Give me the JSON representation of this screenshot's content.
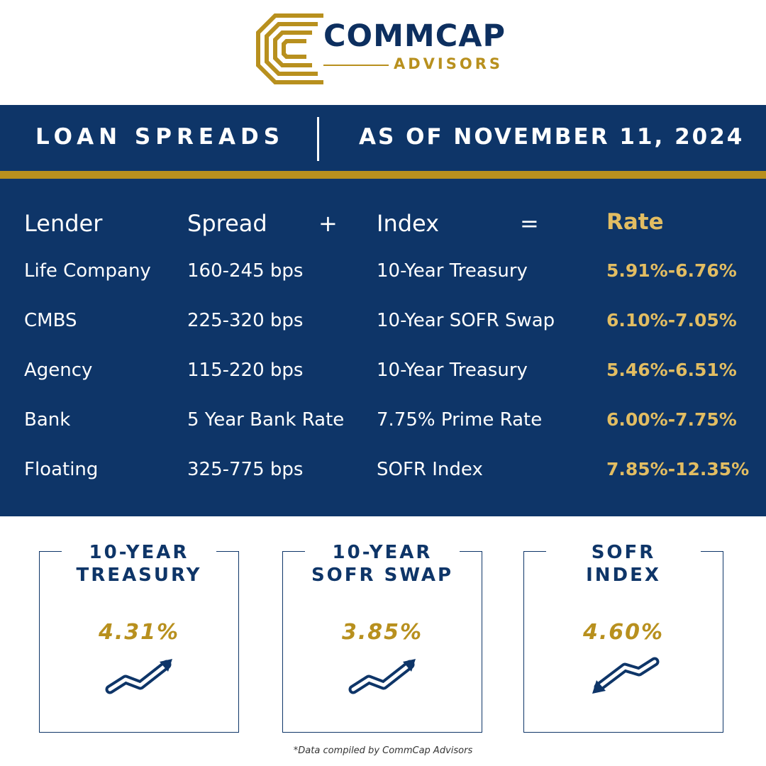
{
  "brand": {
    "name": "COMMCAP",
    "subtitle": "ADVISORS",
    "colors": {
      "navy": "#0e3568",
      "gold": "#b8901e",
      "rate_gold": "#e2bd62"
    }
  },
  "banner": {
    "left_text": "LOAN SPREADS",
    "right_text": "AS OF NOVEMBER 11, 2024"
  },
  "table": {
    "headers": {
      "lender": "Lender",
      "spread": "Spread",
      "plus": "+",
      "index": "Index",
      "equals": "=",
      "rate": "Rate"
    },
    "rows": [
      {
        "lender": "Life Company",
        "spread": "160-245 bps",
        "index": "10-Year Treasury",
        "rate": "5.91%-6.76%"
      },
      {
        "lender": "CMBS",
        "spread": "225-320 bps",
        "index": "10-Year SOFR Swap",
        "rate": "6.10%-7.05%"
      },
      {
        "lender": "Agency",
        "spread": "115-220 bps",
        "index": "10-Year Treasury",
        "rate": "5.46%-6.51%"
      },
      {
        "lender": "Bank",
        "spread": "5 Year Bank Rate",
        "index": "7.75% Prime Rate",
        "rate": "6.00%-7.75%"
      },
      {
        "lender": "Floating",
        "spread": "325-775 bps",
        "index": "SOFR Index",
        "rate": "7.85%-12.35%"
      }
    ]
  },
  "cards": [
    {
      "title_line1": "10-YEAR",
      "title_line2": "TREASURY",
      "value": "4.31%",
      "trend": "up",
      "icon": "trend-up-arrow-icon"
    },
    {
      "title_line1": "10-YEAR",
      "title_line2": "SOFR SWAP",
      "value": "3.85%",
      "trend": "up",
      "icon": "trend-up-arrow-icon"
    },
    {
      "title_line1": "SOFR",
      "title_line2": "INDEX",
      "value": "4.60%",
      "trend": "down",
      "icon": "trend-down-arrow-icon"
    }
  ],
  "footnote": "*Data compiled by CommCap Advisors"
}
